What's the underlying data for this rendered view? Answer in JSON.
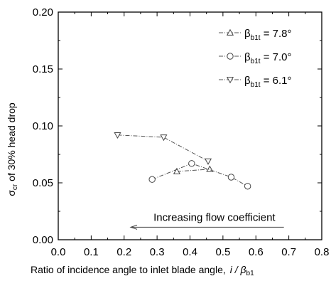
{
  "chart_data": {
    "type": "line",
    "xlabel": "Ratio of incidence angle  to inlet blade angle,",
    "xlabel_symbol": "i / β",
    "xlabel_symbol_sub": "b1",
    "ylabel": "σ",
    "ylabel_sub": "cr",
    "ylabel_rest": " of 30% head drop",
    "xlim": [
      0.0,
      0.8
    ],
    "ylim": [
      0.0,
      0.2
    ],
    "xticks": [
      "0.0",
      "0.1",
      "0.2",
      "0.3",
      "0.4",
      "0.5",
      "0.6",
      "0.7",
      "0.8"
    ],
    "yticks": [
      "0.00",
      "0.05",
      "0.10",
      "0.15",
      "0.20"
    ],
    "grid": false,
    "legend_position": "top-right",
    "series": [
      {
        "label_main": "β",
        "label_sub": "b1t",
        "label_rest": " = 7.8°",
        "marker": "triangle-up",
        "line_style": "dashdot",
        "x": [
          0.36,
          0.46
        ],
        "y": [
          0.06,
          0.062
        ]
      },
      {
        "label_main": "β",
        "label_sub": "b1t",
        "label_rest": " = 7.0°",
        "marker": "circle",
        "line_style": "dashdot",
        "x": [
          0.285,
          0.405,
          0.525,
          0.575
        ],
        "y": [
          0.053,
          0.067,
          0.055,
          0.047
        ]
      },
      {
        "label_main": "β",
        "label_sub": "b1t",
        "label_rest": " = 6.1°",
        "marker": "triangle-down",
        "line_style": "dashdot",
        "x": [
          0.18,
          0.32,
          0.455
        ],
        "y": [
          0.092,
          0.09,
          0.069
        ]
      }
    ],
    "annotation": {
      "text": "Increasing flow coefficient",
      "arrow_direction": "left",
      "x_from": 0.685,
      "x_to": 0.22,
      "y": 0.011
    }
  }
}
